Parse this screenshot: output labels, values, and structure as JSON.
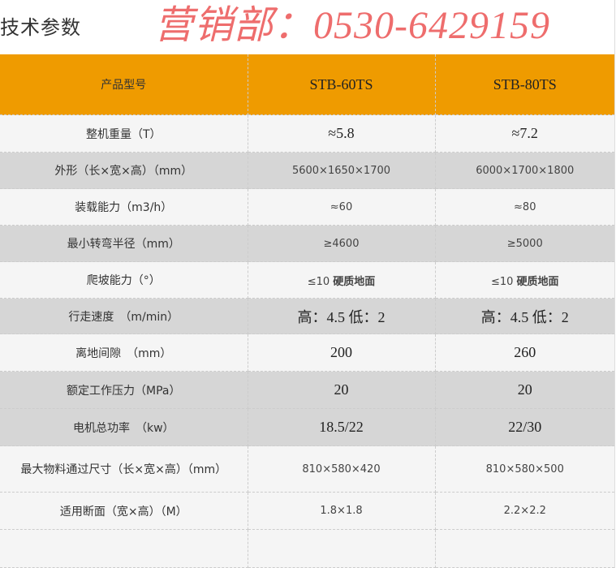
{
  "title": "技术参数",
  "header": {
    "label": "产品型号",
    "models": [
      "STB-60TS",
      "STB-80TS"
    ]
  },
  "rows": [
    {
      "label": "整机重量（T）",
      "v1": "≈5.8",
      "v2": "≈7.2",
      "style": "light",
      "size": "big"
    },
    {
      "label": "外形（长×宽×高）（mm）",
      "v1": "5600×1650×1700",
      "v2": "6000×1700×1800",
      "style": "gray",
      "size": "sm"
    },
    {
      "label": "装载能力（m3/h）",
      "v1": "≈60",
      "v2": "≈80",
      "style": "light",
      "size": "sm"
    },
    {
      "label": "最小转弯半径（mm）",
      "v1": "≥4600",
      "v2": "≥5000",
      "style": "gray",
      "size": "sm"
    },
    {
      "label": "爬坡能力（°）",
      "v1": "≤10",
      "v1b": "硬质地面",
      "v2": "≤10",
      "v2b": "硬质地面",
      "style": "light",
      "size": "sm"
    },
    {
      "label": "行走速度　（m/min）",
      "v1": "高：4.5  低：2",
      "v2": "高：4.5  低：2",
      "style": "gray",
      "size": "big"
    },
    {
      "label": "离地间隙　（mm）",
      "v1": "200",
      "v2": "260",
      "style": "light",
      "size": "big"
    },
    {
      "label": "额定工作压力（MPa）",
      "v1": "20",
      "v2": "20",
      "style": "gray",
      "size": "big"
    },
    {
      "label": "电机总功率　（kw）",
      "v1": "18.5/22",
      "v2": "22/30",
      "style": "gray",
      "size": "big"
    },
    {
      "label": "最大物料通过尺寸（长×宽×高）（mm）",
      "v1": "810×580×420",
      "v2": "810×580×500",
      "style": "light",
      "size": "sm"
    },
    {
      "label": "适用断面（宽×高）（M）",
      "v1": "1.8×1.8",
      "v2": "2.2×2.2",
      "style": "light",
      "size": "sm"
    },
    {
      "label": "",
      "v1": "",
      "v2": "",
      "style": "light",
      "size": "sm"
    }
  ],
  "watermark": "营销部：0530-6429159",
  "colors": {
    "header": "#ef9b00",
    "watermark": "#e83c3c"
  }
}
